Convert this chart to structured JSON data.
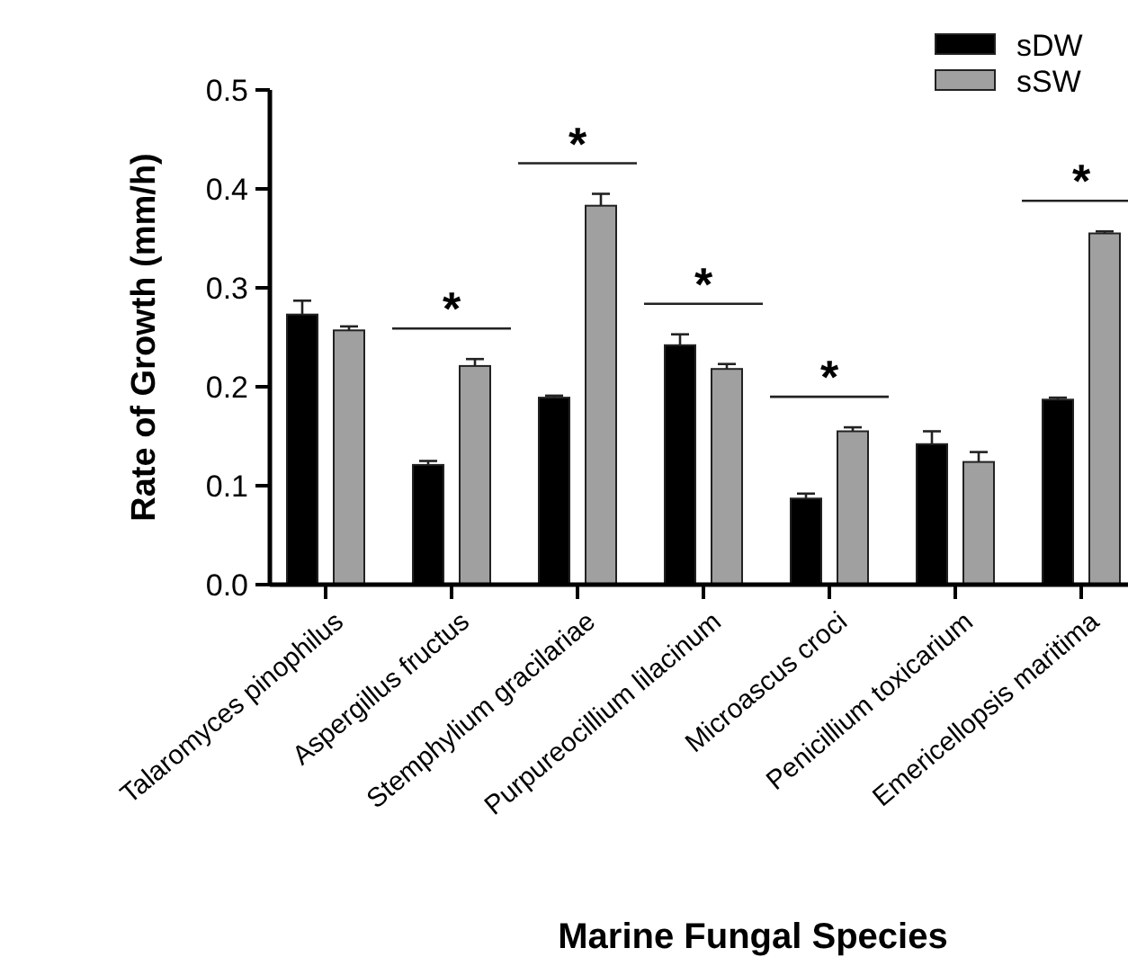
{
  "chart_data": {
    "type": "bar",
    "xlabel": "Marine Fungal Species",
    "ylabel": "Rate of Growth (mm/h)",
    "categories": [
      "Talaromyces pinophilus",
      "Aspergillus fructus",
      "Stemphylium gracilariae",
      "Purpureocillium lilacinum",
      "Microascus croci",
      "Penicillium toxicarium",
      "Emericellopsis maritima"
    ],
    "series": [
      {
        "name": "sDW",
        "color": "#000000",
        "values": [
          0.273,
          0.121,
          0.189,
          0.242,
          0.087,
          0.142,
          0.187
        ],
        "errors": [
          [
            0.273,
            0.287
          ],
          [
            0.121,
            0.125
          ],
          [
            0.189,
            0.191
          ],
          [
            0.242,
            0.253
          ],
          [
            0.087,
            0.092
          ],
          [
            0.142,
            0.155
          ],
          [
            0.187,
            0.189
          ]
        ]
      },
      {
        "name": "sSW",
        "color": "#a0a0a0",
        "values": [
          0.257,
          0.221,
          0.383,
          0.218,
          0.155,
          0.124,
          0.355
        ],
        "errors": [
          [
            0.257,
            0.261
          ],
          [
            0.221,
            0.228
          ],
          [
            0.383,
            0.395
          ],
          [
            0.218,
            0.223
          ],
          [
            0.155,
            0.159
          ],
          [
            0.124,
            0.134
          ],
          [
            0.355,
            0.357
          ]
        ]
      }
    ],
    "ylim": [
      0,
      0.5
    ],
    "yticks": [
      {
        "value": 0,
        "label": "0.0"
      },
      0.1,
      0.2,
      0.3,
      0.4,
      0.5
    ],
    "grid": false,
    "legend": "top right",
    "annotations": [
      "*",
      "*",
      "*",
      "*",
      "*"
    ]
  }
}
